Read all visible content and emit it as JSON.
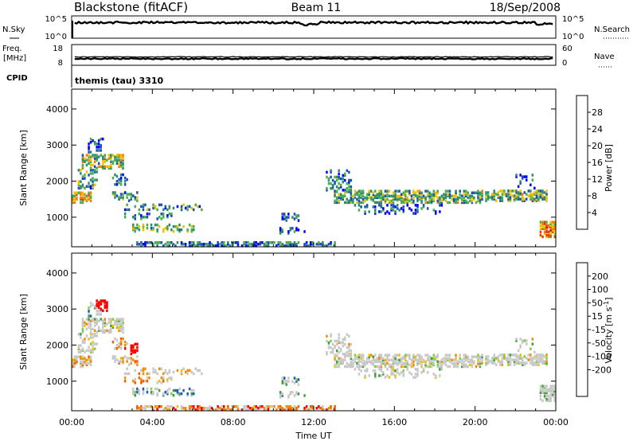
{
  "header": {
    "station": "Blackstone (fitACF)",
    "beam": "Beam 11",
    "date": "18/Sep/2008"
  },
  "status_panels": {
    "nsky_label": "N.Sky",
    "nsearch_label": "N.Search",
    "freq_label_top": "Freq.",
    "freq_label_bottom": "[MHz]",
    "nave_label": "Nave",
    "cpid_label": "CPID",
    "cpid_value": "themis (tau) 3310",
    "nsky_ticks": [
      "10^5",
      "10^0"
    ],
    "nsearch_ticks": [
      "10^5",
      "10^0"
    ],
    "freq_ticks": [
      "18",
      "8"
    ],
    "nave_ticks": [
      "60",
      "0"
    ]
  },
  "colors": {
    "power_scale": [
      "#0000ff",
      "#2050b0",
      "#2f8a70",
      "#46b050",
      "#f0c000",
      "#f08000",
      "#e04000",
      "#e00000"
    ],
    "velocity_scale": [
      "#ff0000",
      "#f06000",
      "#f09000",
      "#f0c000",
      "#c8c8c8",
      "#c8c8c8",
      "#80d040",
      "#40a040",
      "#2060b0",
      "#0020d0"
    ]
  },
  "chart_data": [
    {
      "type": "heatmap",
      "name": "power-panel",
      "xlabel": "",
      "ylabel": "Slant Range [km]",
      "yticks": [
        1000,
        2000,
        3000,
        4000
      ],
      "ylim": [
        180,
        4550
      ],
      "xlim_hours": [
        0,
        24
      ],
      "colorbar_label": "Power [dB]",
      "colorbar_ticks": [
        "4",
        "8",
        "12",
        "16",
        "20",
        "24",
        "28"
      ],
      "colorbar_range": [
        0,
        30
      ]
    },
    {
      "type": "heatmap",
      "name": "velocity-panel",
      "xlabel": "Time UT",
      "ylabel": "Slant Range [km]",
      "yticks": [
        1000,
        2000,
        3000,
        4000
      ],
      "ylim": [
        180,
        4550
      ],
      "xticks": [
        "00:00",
        "04:00",
        "08:00",
        "12:00",
        "16:00",
        "20:00",
        "00:00"
      ],
      "colorbar_label": "Velocity [m s^-1]",
      "colorbar_ticks": [
        "200",
        "100",
        "50",
        "15",
        "-15",
        "-50",
        "-100",
        "-200"
      ]
    }
  ]
}
